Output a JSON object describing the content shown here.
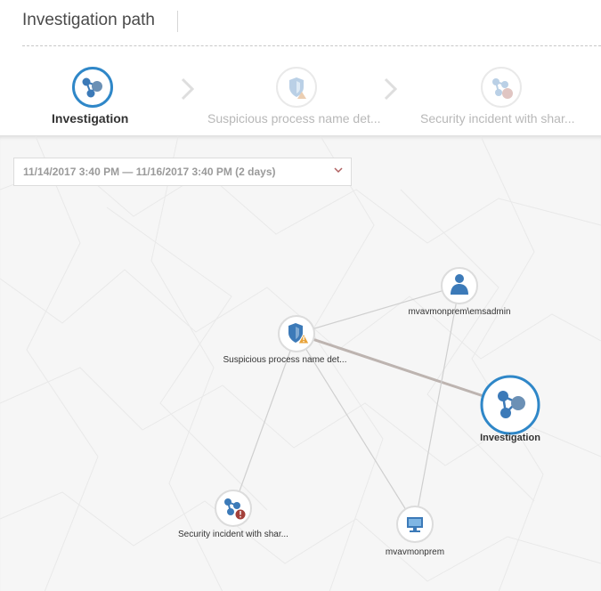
{
  "header": {
    "title": "Investigation path"
  },
  "steps": [
    {
      "label": "Investigation",
      "icon": "investigation-icon",
      "active": true
    },
    {
      "label": "Suspicious process name det...",
      "icon": "shield-alert-icon",
      "active": false
    },
    {
      "label": "Security incident with shar...",
      "icon": "security-incident-icon",
      "active": false
    }
  ],
  "date_range": {
    "value": "11/14/2017 3:40 PM — 11/16/2017 3:40 PM (2 days)",
    "icon": "chevron-down-icon"
  },
  "graph": {
    "nodes": [
      {
        "id": "user",
        "label": "mvavmonprem\\emsadmin",
        "icon": "user-icon",
        "selected": false
      },
      {
        "id": "alert",
        "label": "Suspicious process name det...",
        "icon": "shield-alert-icon",
        "selected": false
      },
      {
        "id": "investigation",
        "label": "Investigation",
        "icon": "investigation-icon",
        "selected": true
      },
      {
        "id": "incident",
        "label": "Security incident with shar...",
        "icon": "security-incident-icon",
        "selected": false
      },
      {
        "id": "computer",
        "label": "mvavmonprem",
        "icon": "computer-icon",
        "selected": false
      }
    ],
    "edges": [
      {
        "from": "alert",
        "to": "user"
      },
      {
        "from": "alert",
        "to": "investigation"
      },
      {
        "from": "alert",
        "to": "incident"
      },
      {
        "from": "alert",
        "to": "computer"
      },
      {
        "from": "user",
        "to": "computer"
      }
    ]
  },
  "colors": {
    "accent": "#2f87c8",
    "icon_blue": "#3c7ab8",
    "alert_orange": "#e8a33a",
    "incident_red": "#a3403a"
  }
}
